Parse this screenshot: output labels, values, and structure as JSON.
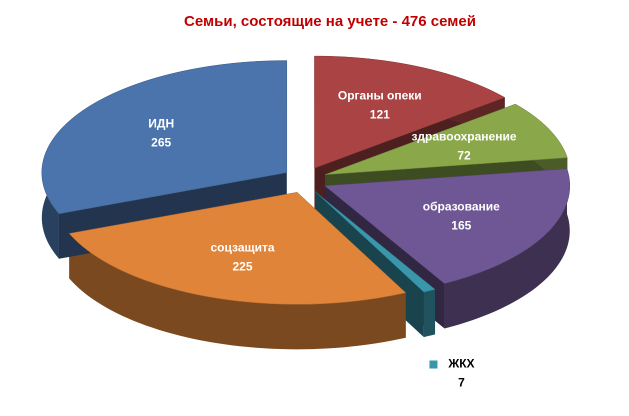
{
  "chart_data": {
    "type": "pie",
    "title": "Семьи, состоящие на учете - 476 семей",
    "categories": [
      "Органы опеки",
      "здравоохранение",
      "образование",
      "ЖКХ",
      "соцзащита",
      "ИДН"
    ],
    "values": [
      121,
      72,
      165,
      7,
      225,
      265
    ],
    "colors": [
      "#aa4444",
      "#8aa84a",
      "#6e5794",
      "#3a96aa",
      "#e0843a",
      "#4b74ad"
    ]
  }
}
